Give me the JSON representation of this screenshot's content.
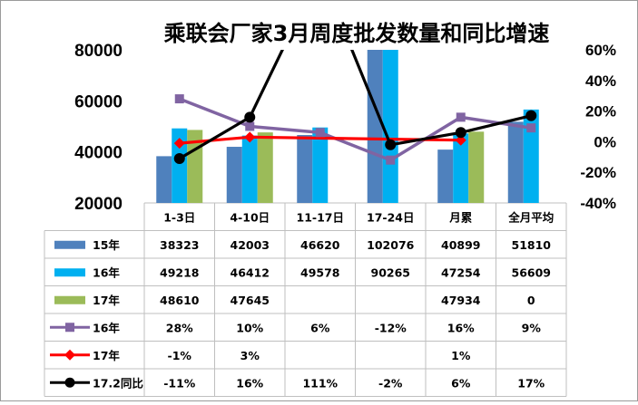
{
  "chart_data": {
    "type": "bar",
    "title": "乘联会厂家3月周度批发数量和同比增速",
    "categories": [
      "1-3日",
      "4-10日",
      "11-17日",
      "17-24日",
      "月累",
      "全月平均"
    ],
    "y_left": {
      "ylim": [
        20000,
        80000
      ],
      "ticks": [
        "80000",
        "60000",
        "40000",
        "20000"
      ],
      "tick_values": [
        80000,
        60000,
        40000,
        20000
      ]
    },
    "y_right": {
      "ylim": [
        -40,
        60
      ],
      "ticks": [
        "60%",
        "40%",
        "20%",
        "0%",
        "-20%",
        "-40%"
      ],
      "tick_values": [
        60,
        40,
        20,
        0,
        -20,
        -40
      ]
    },
    "bar_series": [
      {
        "name": "15年",
        "color": "#4f81bd",
        "values": [
          38323,
          42003,
          46620,
          102076,
          40899,
          51810
        ],
        "labels": [
          "38323",
          "42003",
          "46620",
          "102076",
          "40899",
          "51810"
        ]
      },
      {
        "name": "16年",
        "color": "#00b0f0",
        "values": [
          49218,
          46412,
          49578,
          90265,
          47254,
          56609
        ],
        "labels": [
          "49218",
          "46412",
          "49578",
          "90265",
          "47254",
          "56609"
        ]
      },
      {
        "name": "17年",
        "color": "#9bbb59",
        "values": [
          48610,
          47645,
          null,
          null,
          47934,
          0
        ],
        "labels": [
          "48610",
          "47645",
          "",
          "",
          "47934",
          "0"
        ]
      }
    ],
    "line_series": [
      {
        "name": "16年",
        "color": "#8064a2",
        "marker": "square",
        "values": [
          28,
          10,
          6,
          -12,
          16,
          9
        ],
        "labels": [
          "28%",
          "10%",
          "6%",
          "-12%",
          "16%",
          "9%"
        ]
      },
      {
        "name": "17年",
        "color": "#ff0000",
        "marker": "diamond",
        "values": [
          -1,
          3,
          null,
          null,
          1,
          null
        ],
        "labels": [
          "-1%",
          "3%",
          "",
          "",
          "1%",
          ""
        ]
      },
      {
        "name": "17.2同比",
        "color": "#000000",
        "marker": "circle",
        "values": [
          -11,
          16,
          111,
          -2,
          6,
          17
        ],
        "labels": [
          "-11%",
          "16%",
          "111%",
          "-2%",
          "6%",
          "17%"
        ]
      }
    ]
  }
}
